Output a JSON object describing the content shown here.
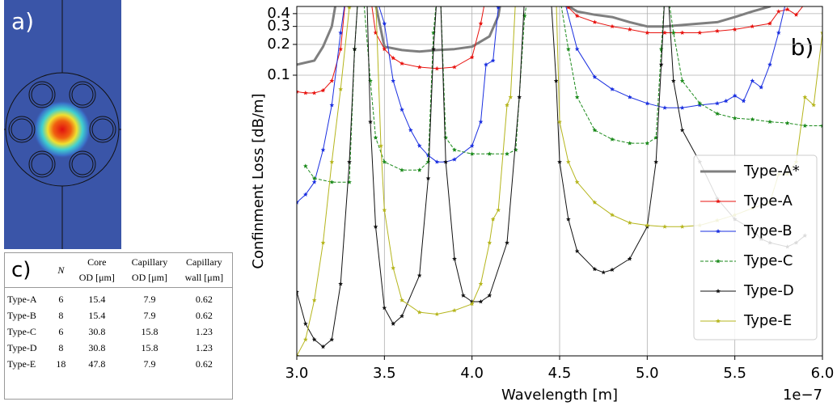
{
  "panels": {
    "a": "a)",
    "b": "b)",
    "c": "c)"
  },
  "table": {
    "columns": [
      [
        "N"
      ],
      [
        "Core",
        "OD [μm]"
      ],
      [
        "Capillary",
        "OD [μm]"
      ],
      [
        "Capillary",
        "wall [μm]"
      ]
    ],
    "rows": [
      [
        "Type-A",
        "6",
        "15.4",
        "7.9",
        "0.62"
      ],
      [
        "Type-B",
        "8",
        "15.4",
        "7.9",
        "0.62"
      ],
      [
        "Type-C",
        "6",
        "30.8",
        "15.8",
        "1.23"
      ],
      [
        "Type-D",
        "8",
        "30.8",
        "15.8",
        "1.23"
      ],
      [
        "Type-E",
        "18",
        "47.8",
        "7.9",
        "0.62"
      ]
    ]
  },
  "chart_data": {
    "type": "line",
    "xlabel": "Wavelength [m]",
    "ylabel": "Confinment Loss [dB/m]",
    "x_offset_label": "1e−7",
    "xlim": [
      3.0,
      6.0
    ],
    "xticks": [
      {
        "value": 3.0,
        "label": "3.0"
      },
      {
        "value": 3.5,
        "label": "3.5"
      },
      {
        "value": 4.0,
        "label": "4.0"
      },
      {
        "value": 4.5,
        "label": "4.5"
      },
      {
        "value": 5.0,
        "label": "5.0"
      },
      {
        "value": 5.5,
        "label": "5.5"
      },
      {
        "value": 6.0,
        "label": "6.0"
      }
    ],
    "ylim": [
      0.00018,
      0.47
    ],
    "yticks": [
      0.1,
      0.2,
      0.3,
      0.4
    ],
    "yscale": "log",
    "grid": true,
    "legend": "lower right",
    "series": [
      {
        "name": "Type-A*",
        "color": "#7f7f7f",
        "linewidth": 3,
        "linestyle": "solid",
        "marker": "none",
        "x": [
          3.0,
          3.1,
          3.15,
          3.2,
          3.23,
          3.3,
          3.44,
          3.5,
          3.6,
          3.7,
          3.8,
          3.9,
          4.0,
          4.1,
          4.15,
          4.17,
          4.3,
          4.45,
          4.6,
          4.7,
          4.8,
          4.9,
          5.0,
          5.1,
          5.2,
          5.3,
          5.4,
          5.5,
          5.6,
          5.7,
          5.75
        ],
        "values": [
          0.127,
          0.139,
          0.19,
          0.3,
          0.6,
          null,
          0.6,
          0.19,
          0.176,
          0.17,
          0.176,
          0.18,
          0.19,
          0.24,
          0.38,
          0.6,
          null,
          0.6,
          0.42,
          0.39,
          0.37,
          0.33,
          0.3,
          0.3,
          0.31,
          0.32,
          0.33,
          0.37,
          0.42,
          0.47,
          0.6
        ]
      },
      {
        "name": "Type-A",
        "color": "#e8130f",
        "linewidth": 1,
        "linestyle": "solid",
        "marker": "star",
        "x": [
          3.0,
          3.05,
          3.1,
          3.15,
          3.2,
          3.25,
          3.28,
          3.35,
          3.42,
          3.45,
          3.5,
          3.55,
          3.6,
          3.7,
          3.8,
          3.9,
          4.0,
          4.05,
          4.08,
          4.3,
          4.5,
          4.55,
          4.6,
          4.7,
          4.8,
          4.9,
          5.0,
          5.1,
          5.2,
          5.3,
          5.4,
          5.5,
          5.6,
          5.7,
          5.75,
          5.8,
          5.85,
          5.9
        ],
        "values": [
          0.069,
          0.067,
          0.067,
          0.071,
          0.088,
          0.18,
          0.6,
          null,
          0.6,
          0.26,
          0.18,
          0.147,
          0.13,
          0.12,
          0.116,
          0.12,
          0.15,
          0.32,
          0.6,
          null,
          0.6,
          0.46,
          0.38,
          0.33,
          0.3,
          0.28,
          0.26,
          0.26,
          0.26,
          0.26,
          0.27,
          0.28,
          0.3,
          0.32,
          0.42,
          0.44,
          0.39,
          0.5
        ]
      },
      {
        "name": "Type-B",
        "color": "#1a2fe0",
        "linewidth": 1,
        "linestyle": "solid",
        "marker": "star",
        "x": [
          3.0,
          3.05,
          3.1,
          3.15,
          3.2,
          3.25,
          3.28,
          3.35,
          3.45,
          3.5,
          3.55,
          3.6,
          3.65,
          3.7,
          3.75,
          3.8,
          3.85,
          3.9,
          4.0,
          4.05,
          4.08,
          4.12,
          4.15,
          4.18,
          4.3,
          4.52,
          4.6,
          4.7,
          4.8,
          4.9,
          5.0,
          5.1,
          5.2,
          5.3,
          5.4,
          5.45,
          5.5,
          5.55,
          5.6,
          5.65,
          5.7,
          5.75,
          5.8
        ],
        "values": [
          0.0057,
          0.0068,
          0.009,
          0.0186,
          0.051,
          0.26,
          0.6,
          null,
          0.6,
          0.32,
          0.088,
          0.046,
          0.029,
          0.0204,
          0.0164,
          0.0142,
          0.0142,
          0.015,
          0.0204,
          0.035,
          0.127,
          0.139,
          0.46,
          0.6,
          null,
          0.6,
          0.18,
          0.096,
          0.073,
          0.061,
          0.053,
          0.048,
          0.048,
          0.051,
          0.053,
          0.056,
          0.063,
          0.056,
          0.088,
          0.076,
          0.127,
          0.26,
          0.6
        ]
      },
      {
        "name": "Type-C",
        "color": "#1b8a1b",
        "linewidth": 1,
        "linestyle": "dashed",
        "marker": "star",
        "x": [
          3.05,
          3.1,
          3.2,
          3.3,
          3.33,
          3.35,
          3.36,
          3.38,
          3.42,
          3.45,
          3.5,
          3.6,
          3.7,
          3.75,
          3.78,
          3.8,
          3.81,
          3.82,
          3.85,
          3.9,
          4.0,
          4.1,
          4.2,
          4.25,
          4.3,
          4.32,
          4.4,
          4.5,
          4.55,
          4.6,
          4.7,
          4.8,
          4.9,
          5.0,
          5.05,
          5.08,
          5.1,
          5.11,
          5.12,
          5.15,
          5.2,
          5.3,
          5.4,
          5.5,
          5.6,
          5.7,
          5.8,
          5.9,
          6.0
        ],
        "values": [
          0.0129,
          0.0098,
          0.009,
          0.009,
          0.18,
          0.6,
          null,
          0.6,
          0.088,
          0.0245,
          0.0142,
          0.0118,
          0.0118,
          0.0142,
          0.26,
          0.6,
          null,
          0.6,
          0.0245,
          0.0186,
          0.017,
          0.017,
          0.017,
          0.0186,
          0.38,
          0.6,
          null,
          0.6,
          0.18,
          0.061,
          0.029,
          0.0236,
          0.0216,
          0.0216,
          0.0245,
          0.18,
          0.6,
          null,
          0.6,
          0.26,
          0.088,
          0.053,
          0.042,
          0.038,
          0.037,
          0.035,
          0.034,
          0.032,
          0.032
        ]
      },
      {
        "name": "Type-D",
        "color": "#111111",
        "linewidth": 1,
        "linestyle": "solid",
        "marker": "star",
        "x": [
          3.0,
          3.05,
          3.1,
          3.15,
          3.2,
          3.25,
          3.3,
          3.33,
          3.35,
          3.37,
          3.4,
          3.42,
          3.45,
          3.5,
          3.55,
          3.6,
          3.7,
          3.75,
          3.78,
          3.8,
          3.81,
          3.82,
          3.85,
          3.9,
          3.95,
          4.0,
          4.05,
          4.1,
          4.2,
          4.27,
          4.3,
          4.4,
          4.45,
          4.48,
          4.5,
          4.55,
          4.6,
          4.7,
          4.75,
          4.8,
          4.9,
          5.0,
          5.05,
          5.08,
          5.1,
          5.11,
          5.12,
          5.15,
          5.2,
          5.3,
          5.4,
          5.5,
          5.6,
          5.65,
          5.7,
          5.8,
          5.85,
          5.9
        ],
        "values": [
          0.00076,
          0.00037,
          0.00026,
          0.000221,
          0.00026,
          0.00091,
          0.0142,
          0.18,
          0.6,
          null,
          0.6,
          0.035,
          0.0033,
          0.00053,
          0.00037,
          0.00044,
          0.0011,
          0.0098,
          0.18,
          0.6,
          null,
          0.6,
          0.0142,
          0.0016,
          0.0007,
          0.00061,
          0.00061,
          0.0007,
          0.0023,
          0.061,
          0.6,
          null,
          0.6,
          0.088,
          0.0142,
          0.0039,
          0.0019,
          0.00127,
          0.00118,
          0.00125,
          0.0016,
          0.0033,
          0.0142,
          0.127,
          0.6,
          null,
          0.6,
          0.088,
          0.029,
          0.0142,
          0.0062,
          0.0039,
          0.0031,
          0.0025,
          0.0023,
          0.0021,
          0.0023,
          0.0027
        ]
      },
      {
        "name": "Type-E",
        "color": "#b5b51c",
        "linewidth": 1,
        "linestyle": "solid",
        "marker": "star",
        "x": [
          3.0,
          3.05,
          3.1,
          3.15,
          3.2,
          3.25,
          3.3,
          3.32,
          3.4,
          3.45,
          3.48,
          3.5,
          3.55,
          3.6,
          3.7,
          3.8,
          3.9,
          4.0,
          4.05,
          4.1,
          4.12,
          4.15,
          4.2,
          4.22,
          4.25,
          4.35,
          4.48,
          4.5,
          4.55,
          4.6,
          4.7,
          4.8,
          4.9,
          5.0,
          5.1,
          5.2,
          5.3,
          5.4,
          5.5,
          5.6,
          5.7,
          5.75,
          5.8,
          5.85,
          5.9,
          5.95,
          6.0
        ],
        "values": [
          0.00018,
          0.00026,
          0.00063,
          0.0023,
          0.0142,
          0.073,
          0.46,
          0.6,
          null,
          0.6,
          0.0204,
          0.0048,
          0.0013,
          0.00063,
          0.00048,
          0.00046,
          0.0005,
          0.00058,
          0.00091,
          0.0023,
          0.0039,
          0.0048,
          0.051,
          0.061,
          0.6,
          null,
          0.6,
          0.035,
          0.0142,
          0.009,
          0.0057,
          0.0043,
          0.0036,
          0.0034,
          0.0033,
          0.0033,
          0.0034,
          0.0038,
          0.0043,
          0.005,
          0.0057,
          0.0108,
          0.0108,
          0.0142,
          0.061,
          0.051,
          0.26
        ]
      }
    ]
  }
}
